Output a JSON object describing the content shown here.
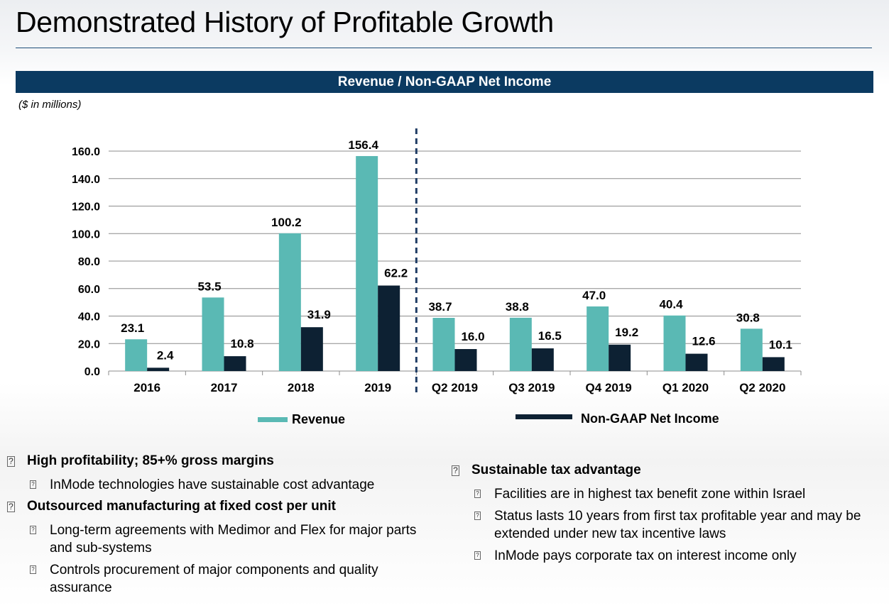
{
  "page": {
    "title": "Demonstrated History of Profitable Growth"
  },
  "chart_banner": "Revenue / Non-GAAP Net Income",
  "units_note": "($ in millions)",
  "chart_data": {
    "type": "bar",
    "title": "Revenue / Non-GAAP Net Income",
    "ylabel": "($ in millions)",
    "categories": [
      "2016",
      "2017",
      "2018",
      "2019",
      "Q2 2019",
      "Q3 2019",
      "Q4 2019",
      "Q1 2020",
      "Q2 2020"
    ],
    "series": [
      {
        "name": "Revenue",
        "color": "#5ab9b4",
        "values": [
          23.1,
          53.5,
          100.2,
          156.4,
          38.7,
          38.8,
          47.0,
          40.4,
          30.8
        ],
        "labels": [
          "23.1",
          "53.5",
          "100.2",
          "156.4",
          "38.7",
          "38.8",
          "47.0",
          "40.4",
          "30.8"
        ]
      },
      {
        "name": "Non-GAAP Net Income",
        "color": "#0d2133",
        "values": [
          2.4,
          10.8,
          31.9,
          62.2,
          16.0,
          16.5,
          19.2,
          12.6,
          10.1
        ],
        "labels": [
          "2.4",
          "10.8",
          "31.9",
          "62.2",
          "16.0",
          "16.5",
          "19.2",
          "12.6",
          "10.1"
        ]
      }
    ],
    "yticks": [
      "0.0",
      "20.0",
      "40.0",
      "60.0",
      "80.0",
      "100.0",
      "120.0",
      "140.0",
      "160.0"
    ],
    "ylim": [
      0,
      160
    ],
    "grid": true,
    "legend": "bottom",
    "divider_after_category": "2019"
  },
  "bullets_left": [
    {
      "level": 1,
      "text": "High profitability; 85+% gross margins"
    },
    {
      "level": 2,
      "text": "InMode technologies have sustainable cost advantage"
    },
    {
      "level": 1,
      "text": "Outsourced manufacturing at fixed cost per unit"
    },
    {
      "level": 2,
      "text": "Long-term agreements with Medimor and Flex for major parts and sub-systems"
    },
    {
      "level": 2,
      "text": "Controls procurement of major components and quality assurance"
    }
  ],
  "bullets_right": [
    {
      "level": 1,
      "text": "Sustainable tax advantage"
    },
    {
      "level": 2,
      "text": "Facilities are in highest tax benefit zone within Israel"
    },
    {
      "level": 2,
      "text": "Status lasts 10 years from first tax profitable year and may be extended under new tax incentive laws"
    },
    {
      "level": 2,
      "text": "InMode pays corporate tax on interest income only"
    }
  ],
  "bullet_glyph": "?"
}
